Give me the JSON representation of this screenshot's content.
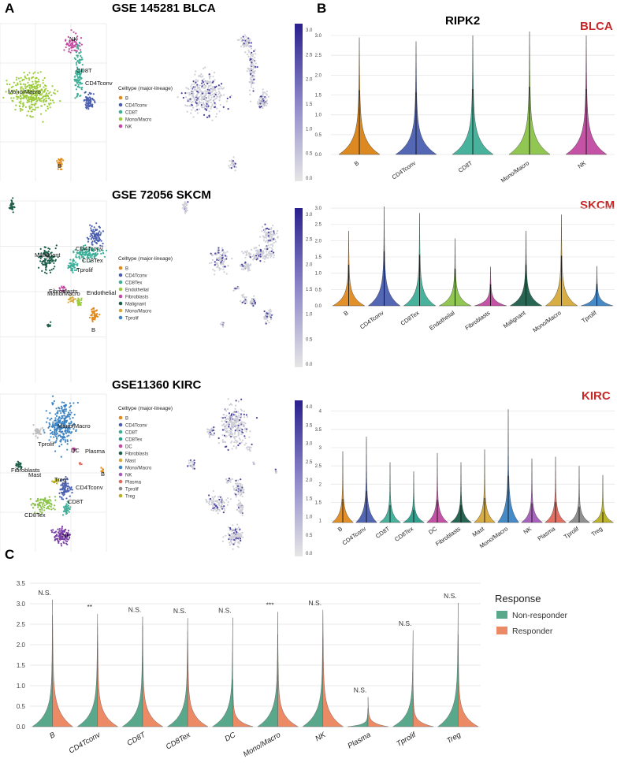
{
  "panel_labels": {
    "A": "A",
    "B": "B",
    "C": "C"
  },
  "titles": {
    "blca": "GSE 145281 BLCA",
    "skcm": "GSE 72056 SKCM",
    "kirc": "GSE11360  KIRC",
    "gene": "RIPK2"
  },
  "cancer_labels": {
    "blca": "BLCA",
    "skcm": "SKCM",
    "kirc": "KIRC"
  },
  "colors": {
    "cancer_label": "#c62828",
    "B": "#d98314",
    "CD4Tconv": "#4a5fb0",
    "CD8T": "#3fae98",
    "CD8Tex": "#2a9d8a",
    "DC": "#c2479a",
    "Endothelial": "#8bc34a",
    "Fibroblasts": "#b64c9c",
    "Malignant": "#1c5e4a",
    "Mast": "#d6a93a",
    "Mono/Macro": "#3c84c4",
    "NK": "#a35cb8",
    "Plasma": "#e0685a",
    "Tprolif": "#8a8a8a",
    "Treg": "#b8b020",
    "nonresponder": "#5aa88c",
    "responder": "#ec8a66"
  },
  "umap_legends": {
    "blca": {
      "title": "Celltype (major-lineage)",
      "items": [
        {
          "label": "B",
          "color": "#e08a1e"
        },
        {
          "label": "CD4Tconv",
          "color": "#4a5fb0"
        },
        {
          "label": "CD8T",
          "color": "#3fae98"
        },
        {
          "label": "Mono/Macro",
          "color": "#9ccc3c"
        },
        {
          "label": "NK",
          "color": "#c24aa0"
        }
      ]
    },
    "skcm": {
      "title": "Celltype (major-lineage)",
      "items": [
        {
          "label": "B",
          "color": "#e08a1e"
        },
        {
          "label": "CD4Tconv",
          "color": "#4a5fb0"
        },
        {
          "label": "CD8Tex",
          "color": "#3fae98"
        },
        {
          "label": "Endothelial",
          "color": "#9ccc3c"
        },
        {
          "label": "Fibroblasts",
          "color": "#c24aa0"
        },
        {
          "label": "Malignant",
          "color": "#1c5e4a"
        },
        {
          "label": "Mono/Macro",
          "color": "#d6a93a"
        },
        {
          "label": "Tprolif",
          "color": "#3c84c4"
        }
      ]
    },
    "kirc": {
      "title": "Celltype (major-lineage)",
      "items": [
        {
          "label": "B",
          "color": "#e08a1e"
        },
        {
          "label": "CD4Tconv",
          "color": "#4a5fb0"
        },
        {
          "label": "CD8T",
          "color": "#3fae98"
        },
        {
          "label": "CD8Tex",
          "color": "#2a9d8a"
        },
        {
          "label": "DC",
          "color": "#c24aa0"
        },
        {
          "label": "Fibroblasts",
          "color": "#1c5e4a"
        },
        {
          "label": "Mast",
          "color": "#d6a93a"
        },
        {
          "label": "Mono/Macro",
          "color": "#3c84c4"
        },
        {
          "label": "NK",
          "color": "#a35cb8"
        },
        {
          "label": "Plasma",
          "color": "#e0685a"
        },
        {
          "label": "Tprolif",
          "color": "#8a8a8a"
        },
        {
          "label": "Treg",
          "color": "#b8b020"
        }
      ]
    }
  },
  "umap_cluster_labels": {
    "blca": [
      "NK",
      "CD8T",
      "Mono/Macro",
      "CD4Tconv",
      "B"
    ],
    "skcm": [
      "CD4Tconv",
      "CD8Tex",
      "Malignant",
      "Tprolif",
      "Fibroblasts",
      "Endothelial",
      "Mono/Macro",
      "B"
    ],
    "kirc": [
      "Mono/Macro",
      "Plasma",
      "Tprolif",
      "DC",
      "B",
      "Mast",
      "Fibroblasts",
      "Treg",
      "CD4Tconv",
      "CD8T",
      "CD8Tex",
      "NK"
    ]
  },
  "colorbars": {
    "blca": {
      "ticks": [
        "3.0",
        "2.5",
        "2.0",
        "1.5",
        "1.0",
        "0.5",
        "0.0"
      ]
    },
    "skcm": {
      "ticks": [
        "3.0",
        "2.5",
        "2.0",
        "1.5",
        "1.0",
        "0.5",
        "0.0"
      ]
    },
    "kirc": {
      "ticks": [
        "4.0",
        "3.5",
        "3.0",
        "2.5",
        "2.0",
        "1.5",
        "1.0",
        "0.5",
        "0.0"
      ]
    }
  },
  "chart_data": [
    {
      "type": "violin",
      "panel": "B-BLCA",
      "title": "RIPK2",
      "categories": [
        "B",
        "CD4Tconv",
        "CD8T",
        "Mono/Macro",
        "NK"
      ],
      "max_values": [
        2.95,
        2.85,
        3.0,
        3.1,
        3.0
      ],
      "ylim": [
        0,
        3.1
      ],
      "yticks": [
        0.0,
        0.5,
        1.0,
        1.5,
        2.0,
        2.5,
        3.0
      ],
      "ytick_labels": [
        "0.0",
        "0.5",
        "1.0",
        "1.5",
        "2.0",
        "2.5",
        "3.0"
      ],
      "colors": [
        "#d98314",
        "#4a5fb0",
        "#3fae98",
        "#8bc34a",
        "#c24aa0"
      ]
    },
    {
      "type": "violin",
      "panel": "B-SKCM",
      "categories": [
        "B",
        "CD4Tconv",
        "CD8Tex",
        "Endothelial",
        "Fibroblasts",
        "Malignant",
        "Mono/Macro",
        "Tprolif"
      ],
      "max_values": [
        2.3,
        3.05,
        2.85,
        2.07,
        1.2,
        2.3,
        2.8,
        1.22
      ],
      "ylim": [
        0,
        3.05
      ],
      "yticks": [
        0.0,
        0.5,
        1.0,
        1.5,
        2.0,
        2.5,
        3.0
      ],
      "ytick_labels": [
        "0.0",
        "0.5",
        "1.0",
        "1.5",
        "2.0",
        "2.5",
        "3.0"
      ],
      "colors": [
        "#e08a1e",
        "#4a5fb0",
        "#3fae98",
        "#8bc34a",
        "#c24aa0",
        "#1c5e4a",
        "#d6a93a",
        "#3c84c4"
      ]
    },
    {
      "type": "violin",
      "panel": "B-KIRC",
      "categories": [
        "B",
        "CD4Tconv",
        "CD8T",
        "CD8Tex",
        "DC",
        "Fibroblasts",
        "Mast",
        "Mono/Macro",
        "NK",
        "Plasma",
        "Tprolif",
        "Treg"
      ],
      "max_values": [
        2.9,
        3.3,
        2.6,
        2.35,
        2.85,
        2.6,
        2.95,
        4.05,
        2.7,
        2.75,
        2.5,
        2.25
      ],
      "ylim": [
        0.95,
        4.1
      ],
      "yticks": [
        1,
        1.5,
        2,
        2.5,
        3,
        3.5,
        4
      ],
      "ytick_labels": [
        "1",
        "1.5",
        "2",
        "2.5",
        "3",
        "3.5",
        "4"
      ],
      "colors": [
        "#e08a1e",
        "#4a5fb0",
        "#3fae98",
        "#2a9d8a",
        "#c24aa0",
        "#1c5e4a",
        "#d6a93a",
        "#3c84c4",
        "#a35cb8",
        "#e0685a",
        "#8a8a8a",
        "#b8b020"
      ]
    },
    {
      "type": "split-violin",
      "panel": "C",
      "categories": [
        "B",
        "CD4Tconv",
        "CD8T",
        "CD8Tex",
        "DC",
        "Mono/Macro",
        "NK",
        "Plasma",
        "Tprolif",
        "Treg"
      ],
      "series": [
        {
          "name": "Non-responder",
          "max_values": [
            2.72,
            2.75,
            2.68,
            2.65,
            2.66,
            2.8,
            2.85,
            0.45,
            2.35,
            3.02
          ]
        },
        {
          "name": "Responder",
          "max_values": [
            3.1,
            2.52,
            2.46,
            2.32,
            1.15,
            2.25,
            2.8,
            0.72,
            1.0,
            2.25
          ]
        }
      ],
      "significance": [
        "N.S.",
        "**",
        "N.S.",
        "N.S.",
        "N.S.",
        "***",
        "N.S.",
        "N.S.",
        "N.S.",
        "N.S."
      ],
      "ylim": [
        0,
        3.5
      ],
      "yticks": [
        0.0,
        0.5,
        1.0,
        1.5,
        2.0,
        2.5,
        3.0,
        3.5
      ],
      "ytick_labels": [
        "0.0",
        "0.5",
        "1.0",
        "1.5",
        "2.0",
        "2.5",
        "3.0",
        "3.5"
      ],
      "legend": {
        "title": "Response",
        "position": "right"
      }
    }
  ]
}
